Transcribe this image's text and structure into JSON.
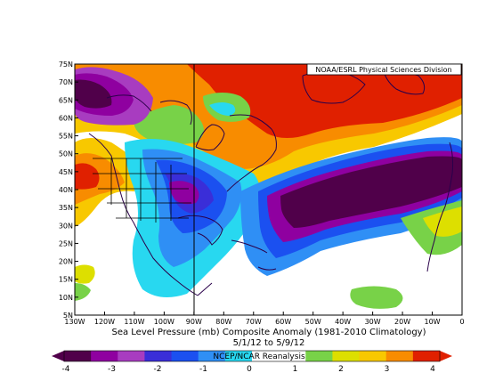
{
  "credit": "NOAA/ESRL Physical Sciences Division",
  "title_line1": "Sea Level Pressure (mb) Composite Anomaly (1981-2010 Climatology)",
  "title_line2": "5/1/12  to 5/9/12",
  "colorbar_credit": "NCEP/NCAR Reanalysis",
  "lat_labels": [
    "75N",
    "70N",
    "65N",
    "60N",
    "55N",
    "50N",
    "45N",
    "40N",
    "35N",
    "30N",
    "25N",
    "20N",
    "15N",
    "10N",
    "5N"
  ],
  "lon_labels": [
    "130W",
    "120W",
    "110W",
    "100W",
    "90W",
    "80W",
    "70W",
    "60W",
    "50W",
    "40W",
    "30W",
    "20W",
    "10W",
    "0"
  ],
  "colorbar": {
    "ticks": [
      "-4",
      "-3",
      "-2",
      "-1",
      "0",
      "1",
      "2",
      "3",
      "4"
    ],
    "colors": [
      "#50004a",
      "#8f00a0",
      "#a83cc0",
      "#3a2ed8",
      "#1b50f0",
      "#2f8ff5",
      "#28d8f0",
      "#ffffff",
      "#ffffff",
      "#78d248",
      "#dddf00",
      "#f8c800",
      "#f88c00",
      "#e02000"
    ]
  },
  "map": {
    "lon_range": [
      -130,
      0
    ],
    "lat_range": [
      5,
      75
    ],
    "variable": "sea level pressure anomaly (mb)"
  }
}
